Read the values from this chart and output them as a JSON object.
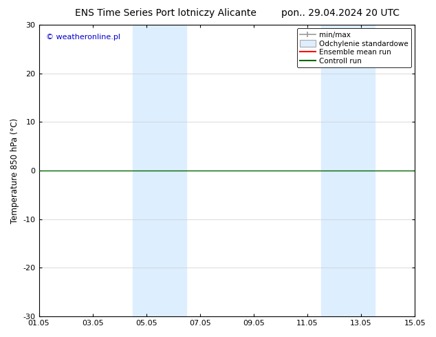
{
  "title_left": "ENS Time Series Port lotniczy Alicante",
  "title_right": "pon.. 29.04.2024 20 UTC",
  "ylabel": "Temperature 850 hPa (°C)",
  "ylim": [
    -30,
    30
  ],
  "yticks": [
    -30,
    -20,
    -10,
    0,
    10,
    20,
    30
  ],
  "xtick_labels": [
    "01.05",
    "03.05",
    "05.05",
    "07.05",
    "09.05",
    "11.05",
    "13.05",
    "15.05"
  ],
  "xtick_positions": [
    0,
    2,
    4,
    6,
    8,
    10,
    12,
    14
  ],
  "watermark": "© weatheronline.pl",
  "watermark_color": "#0000cc",
  "background_color": "#ffffff",
  "plot_bg_color": "#ffffff",
  "zero_line_color": "#006600",
  "zero_line_value": 0,
  "shaded_regions": [
    {
      "xstart": 3.5,
      "xend": 5.5,
      "color": "#ddeeff"
    },
    {
      "xstart": 10.5,
      "xend": 12.5,
      "color": "#ddeeff"
    }
  ],
  "legend_items": [
    {
      "label": "min/max",
      "type": "errorbar",
      "color": "#999999"
    },
    {
      "label": "Odchylenie standardowe",
      "type": "band",
      "color": "#ccddee"
    },
    {
      "label": "Ensemble mean run",
      "type": "line",
      "color": "#ff0000"
    },
    {
      "label": "Controll run",
      "type": "line",
      "color": "#006600"
    }
  ],
  "title_fontsize": 10,
  "tick_fontsize": 8,
  "label_fontsize": 8.5,
  "legend_fontsize": 7.5
}
